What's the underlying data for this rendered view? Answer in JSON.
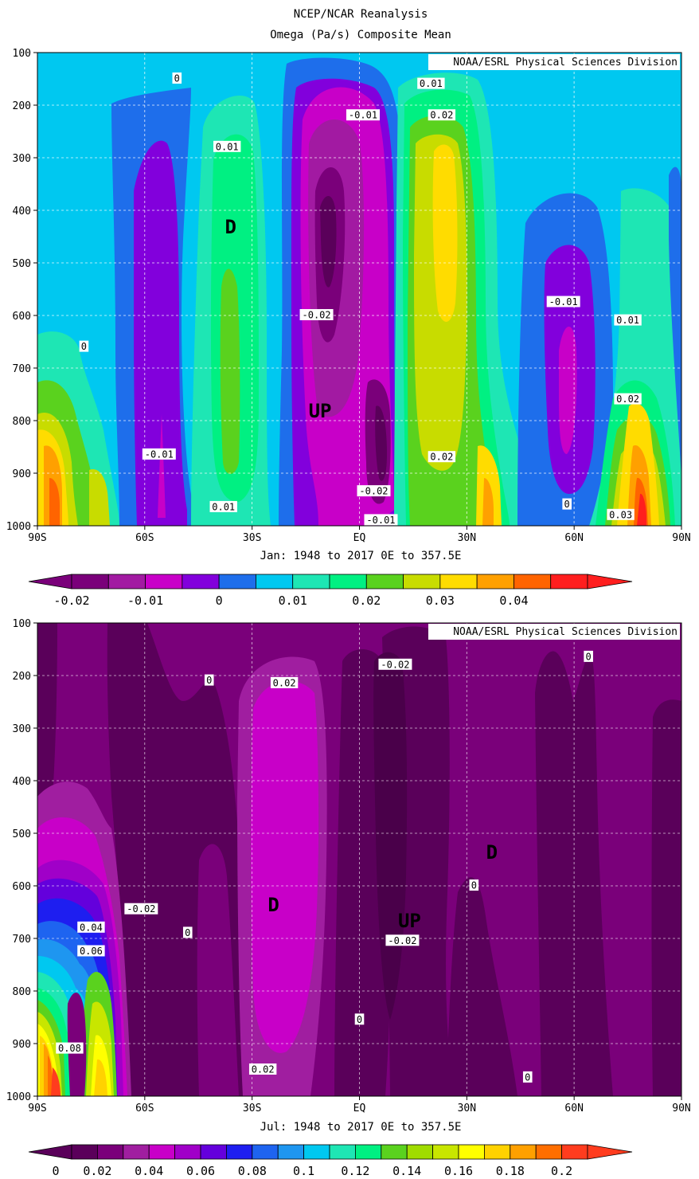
{
  "title": {
    "line1": "NCEP/NCAR Reanalysis",
    "line2": "Omega (Pa/s) Composite Mean"
  },
  "credit": "NOAA/ESRL Physical Sciences Division",
  "chart_data": [
    {
      "type": "heatmap",
      "name": "january",
      "xlabel": "Jan: 1948 to 2017 0E to 357.5E",
      "ylabel": "",
      "x_ticks": [
        "90S",
        "60S",
        "30S",
        "EQ",
        "30N",
        "60N",
        "90N"
      ],
      "y_ticks": [
        "100",
        "200",
        "300",
        "400",
        "500",
        "600",
        "700",
        "800",
        "900",
        "1000"
      ],
      "xlim": [
        -90,
        90
      ],
      "ylim": [
        1000,
        100
      ],
      "grid": true,
      "colorbar": {
        "labels": [
          "-0.02",
          "-0.01",
          "0",
          "0.01",
          "0.02",
          "0.03",
          "0.04"
        ],
        "colors": [
          "#7a007a",
          "#a21aa2",
          "#c800c8",
          "#8200dc",
          "#1e6eeb",
          "#00c8f0",
          "#1ee6b4",
          "#00f082",
          "#5ad21e",
          "#c8dc00",
          "#ffdc00",
          "#ffa000",
          "#ff6400",
          "#ff1e1e"
        ]
      },
      "text_labels": [
        {
          "text": "0",
          "lat": -51,
          "p": 150
        },
        {
          "text": "-0.01",
          "lat": 1,
          "p": 220
        },
        {
          "text": "0.01",
          "lat": 20,
          "p": 160
        },
        {
          "text": "0.02",
          "lat": 23,
          "p": 220
        },
        {
          "text": "0.01",
          "lat": -37,
          "p": 280
        },
        {
          "text": "D",
          "lat": -36,
          "p": 430
        },
        {
          "text": "-0.02",
          "lat": -12,
          "p": 600
        },
        {
          "text": "UP",
          "lat": -11,
          "p": 780
        },
        {
          "text": "0",
          "lat": -77,
          "p": 660
        },
        {
          "text": "-0.01",
          "lat": 57,
          "p": 575
        },
        {
          "text": "0.01",
          "lat": 75,
          "p": 610
        },
        {
          "text": "0.02",
          "lat": 75,
          "p": 760
        },
        {
          "text": "0.02",
          "lat": 23,
          "p": 870
        },
        {
          "text": "-0.01",
          "lat": -56,
          "p": 865
        },
        {
          "text": "0.01",
          "lat": -38,
          "p": 965
        },
        {
          "text": "-0.02",
          "lat": 4,
          "p": 935
        },
        {
          "text": "-0.01",
          "lat": 6,
          "p": 990
        },
        {
          "text": "0",
          "lat": 58,
          "p": 960
        },
        {
          "text": "0.03",
          "lat": 73,
          "p": 980
        }
      ]
    },
    {
      "type": "heatmap",
      "name": "july",
      "xlabel": "Jul: 1948 to 2017 0E to 357.5E",
      "ylabel": "",
      "x_ticks": [
        "90S",
        "60S",
        "30S",
        "EQ",
        "30N",
        "60N",
        "90N"
      ],
      "y_ticks": [
        "100",
        "200",
        "300",
        "400",
        "500",
        "600",
        "700",
        "800",
        "900",
        "1000"
      ],
      "xlim": [
        -90,
        90
      ],
      "ylim": [
        1000,
        100
      ],
      "grid": true,
      "colorbar": {
        "labels": [
          "0",
          "0.02",
          "0.04",
          "0.06",
          "0.08",
          "0.1",
          "0.12",
          "0.14",
          "0.16",
          "0.18",
          "0.2"
        ],
        "colors": [
          "#5a005a",
          "#7a007a",
          "#a01ea0",
          "#c800c8",
          "#a000c8",
          "#6400dc",
          "#1e1ef0",
          "#1e64f0",
          "#1e96f0",
          "#00c8f0",
          "#1ee6b4",
          "#00f082",
          "#5ad21e",
          "#a0dc00",
          "#c8e600",
          "#ffff00",
          "#ffd200",
          "#ffa000",
          "#ff6e00",
          "#ff3c1e"
        ]
      },
      "text_labels": [
        {
          "text": "0",
          "lat": -42,
          "p": 210
        },
        {
          "text": "0.02",
          "lat": -21,
          "p": 215
        },
        {
          "text": "-0.02",
          "lat": 10,
          "p": 180
        },
        {
          "text": "0",
          "lat": 64,
          "p": 165
        },
        {
          "text": "D",
          "lat": 37,
          "p": 535
        },
        {
          "text": "0",
          "lat": 32,
          "p": 600
        },
        {
          "text": "D",
          "lat": -24,
          "p": 635
        },
        {
          "text": "-0.02",
          "lat": -61,
          "p": 645
        },
        {
          "text": "UP",
          "lat": 14,
          "p": 665
        },
        {
          "text": "0.04",
          "lat": -75,
          "p": 680
        },
        {
          "text": "0",
          "lat": -48,
          "p": 690
        },
        {
          "text": "-0.02",
          "lat": 12,
          "p": 705
        },
        {
          "text": "0.06",
          "lat": -75,
          "p": 725
        },
        {
          "text": "0",
          "lat": 0,
          "p": 855
        },
        {
          "text": "0.08",
          "lat": -81,
          "p": 910
        },
        {
          "text": "0.02",
          "lat": -27,
          "p": 950
        },
        {
          "text": "0",
          "lat": 47,
          "p": 965
        }
      ]
    }
  ]
}
